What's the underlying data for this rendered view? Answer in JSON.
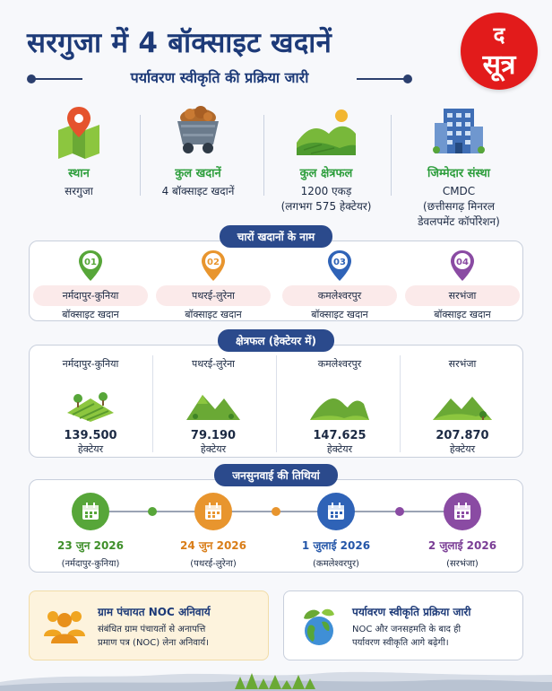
{
  "header": {
    "title": "सरगुजा में 4 बॉक्साइट खदानें",
    "subtitle": "पर्यावरण स्वीकृति की प्रक्रिया जारी"
  },
  "logo": {
    "line1": "द",
    "line2": "सूत्र"
  },
  "stats": [
    {
      "label": "स्थान",
      "value": "सरगुजा",
      "icon": "map-pin-icon"
    },
    {
      "label": "कुल खदानें",
      "value": "4 बॉक्साइट खदानें",
      "icon": "mine-cart-icon"
    },
    {
      "label": "कुल क्षेत्रफल",
      "value": "1200 एकड़",
      "value2": "(लगभग 575 हेक्टेयर)",
      "icon": "landscape-icon"
    },
    {
      "label": "जिम्मेदार संस्था",
      "value": "CMDC",
      "value2": "(छत्तीसगढ़ मिनरल",
      "value3": "डेवलपमेंट कॉर्पोरेशन)",
      "icon": "building-icon"
    }
  ],
  "mines_section": {
    "title": "चारों खदानों के नाम",
    "items": [
      {
        "num": "01",
        "name": "नर्मदापुर-कुनिया",
        "sub": "बॉक्साइट खदान",
        "color": "#57a639"
      },
      {
        "num": "02",
        "name": "पथरई-लुरेना",
        "sub": "बॉक्साइट खदान",
        "color": "#e8952e"
      },
      {
        "num": "03",
        "name": "कमलेश्वरपुर",
        "sub": "बॉक्साइट खदान",
        "color": "#2f63b7"
      },
      {
        "num": "04",
        "name": "सरभंजा",
        "sub": "बॉक्साइट खदान",
        "color": "#8a4ba3"
      }
    ]
  },
  "area_section": {
    "title": "क्षेत्रफल (हेक्टेयर में)",
    "items": [
      {
        "name": "नर्मदापुर-कुनिया",
        "value": "139.500",
        "unit": "हेक्टेयर"
      },
      {
        "name": "पथरई-लुरेना",
        "value": "79.190",
        "unit": "हेक्टेयर"
      },
      {
        "name": "कमलेश्वरपुर",
        "value": "147.625",
        "unit": "हेक्टेयर"
      },
      {
        "name": "सरभंजा",
        "value": "207.870",
        "unit": "हेक्टेयर"
      }
    ]
  },
  "hearing_section": {
    "title": "जनसुनवाई की तिथियां",
    "items": [
      {
        "date": "23 जुन 2026",
        "place": "(नर्मदापुर-कुनिया)",
        "color": "#57a639"
      },
      {
        "date": "24 जुन 2026",
        "place": "(पथरई-लुरेना)",
        "color": "#e8952e"
      },
      {
        "date": "1 जुलाई 2026",
        "place": "(कमलेश्वरपुर)",
        "color": "#2f63b7"
      },
      {
        "date": "2 जुलाई 2026",
        "place": "(सरभंजा)",
        "color": "#8a4ba3"
      }
    ]
  },
  "cards": [
    {
      "title": "ग्राम पंचायत NOC अनिवार्य",
      "body1": "संबंधित ग्राम पंचायतों से अनापत्ति",
      "body2": "प्रमाण पत्र (NOC) लेना अनिवार्य।",
      "icon": "people-group-icon"
    },
    {
      "title": "पर्यावरण स्वीकृति प्रक्रिया जारी",
      "body1": "NOC और जनसहमति के बाद ही",
      "body2": "पर्यावरण स्वीकृति आगे बढ़ेगी।",
      "icon": "globe-leaf-icon"
    }
  ]
}
